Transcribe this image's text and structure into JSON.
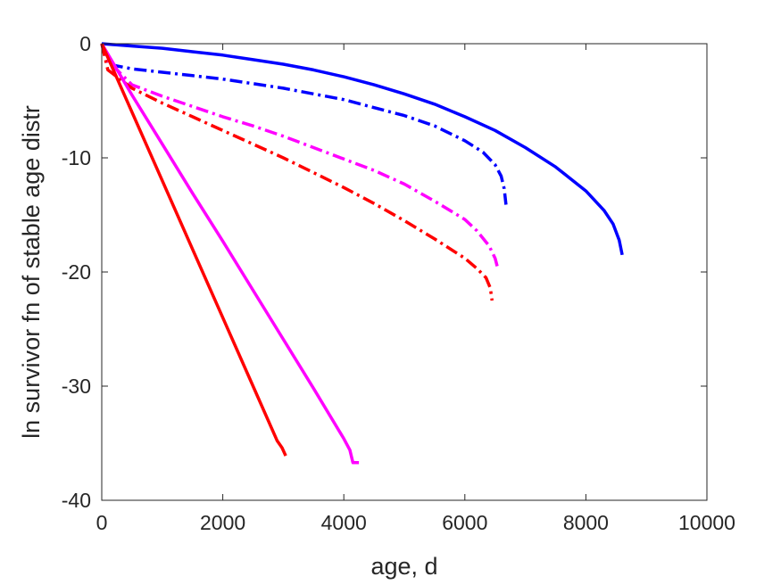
{
  "chart_data": {
    "type": "line",
    "title": "",
    "xlabel": "age, d",
    "ylabel": "ln survivor fn of stable age distr",
    "xlim": [
      0,
      10000
    ],
    "ylim": [
      -40,
      0
    ],
    "xticks": [
      0,
      2000,
      4000,
      6000,
      8000,
      10000
    ],
    "yticks": [
      0,
      -10,
      -20,
      -30,
      -40
    ],
    "xtick_labels": [
      "0",
      "2000",
      "4000",
      "6000",
      "8000",
      "10000"
    ],
    "ytick_labels": [
      "0",
      "-10",
      "-20",
      "-30",
      "-40"
    ],
    "grid": false,
    "legend": "none",
    "series": [
      {
        "color": "#0000ff",
        "style": "solid",
        "x": [
          0,
          500,
          1000,
          1500,
          2000,
          2500,
          3000,
          3500,
          4000,
          4500,
          5000,
          5500,
          6000,
          6500,
          7000,
          7500,
          8000,
          8300,
          8450,
          8550,
          8600
        ],
        "y": [
          0,
          -0.2,
          -0.4,
          -0.7,
          -1.0,
          -1.4,
          -1.8,
          -2.3,
          -2.9,
          -3.6,
          -4.4,
          -5.3,
          -6.4,
          -7.6,
          -9.1,
          -10.8,
          -12.9,
          -14.6,
          -15.8,
          -17.2,
          -18.5
        ]
      },
      {
        "color": "#0000ff",
        "style": "dashdot",
        "x": [
          0,
          100,
          500,
          1000,
          1500,
          2000,
          2500,
          3000,
          3500,
          4000,
          4500,
          5000,
          5500,
          6000,
          6300,
          6500,
          6600,
          6650,
          6680
        ],
        "y": [
          0,
          -1.8,
          -2.2,
          -2.5,
          -2.8,
          -3.1,
          -3.5,
          -3.9,
          -4.4,
          -4.9,
          -5.6,
          -6.3,
          -7.2,
          -8.5,
          -9.5,
          -10.6,
          -11.6,
          -12.7,
          -14.1
        ]
      },
      {
        "color": "#ff00ff",
        "style": "dashdot",
        "x": [
          0,
          100,
          500,
          1000,
          1500,
          2000,
          2500,
          3000,
          3500,
          4000,
          4500,
          5000,
          5500,
          6000,
          6200,
          6400,
          6500,
          6540
        ],
        "y": [
          0,
          -1.5,
          -3.6,
          -4.6,
          -5.5,
          -6.4,
          -7.2,
          -8.1,
          -9.1,
          -10.1,
          -11.1,
          -12.3,
          -13.8,
          -15.4,
          -16.4,
          -17.7,
          -18.8,
          -19.6
        ]
      },
      {
        "color": "#ff0000",
        "style": "dashdot",
        "x": [
          0,
          100,
          500,
          1000,
          1500,
          2000,
          2500,
          3000,
          3500,
          4000,
          4500,
          5000,
          5500,
          6000,
          6200,
          6350,
          6420,
          6450
        ],
        "y": [
          0,
          -2.3,
          -3.9,
          -5.2,
          -6.4,
          -7.6,
          -8.8,
          -10.0,
          -11.3,
          -12.6,
          -14.0,
          -15.5,
          -17.1,
          -18.8,
          -19.7,
          -20.5,
          -21.4,
          -22.5
        ]
      },
      {
        "color": "#ff00ff",
        "style": "solid",
        "x": [
          0,
          500,
          1000,
          1500,
          2000,
          2500,
          3000,
          3500,
          4000,
          4100,
          4150,
          4250
        ],
        "y": [
          0,
          -4.5,
          -8.8,
          -13.1,
          -17.3,
          -21.6,
          -25.9,
          -30.2,
          -34.6,
          -35.6,
          -36.7,
          -36.7
        ]
      },
      {
        "color": "#ff0000",
        "style": "solid",
        "x": [
          0,
          500,
          1000,
          1500,
          2000,
          2500,
          2900,
          2980,
          3040
        ],
        "y": [
          0,
          -6.0,
          -12.0,
          -18.0,
          -24.0,
          -30.0,
          -34.8,
          -35.4,
          -36.1
        ]
      }
    ]
  }
}
